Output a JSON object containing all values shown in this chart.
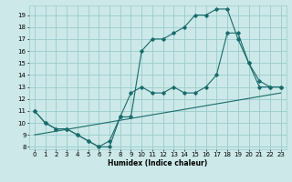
{
  "xlabel": "Humidex (Indice chaleur)",
  "bg_color": "#cce8e8",
  "grid_color": "#99cccc",
  "line_color": "#1a6b6b",
  "xlim": [
    -0.5,
    23.5
  ],
  "ylim": [
    7.8,
    19.8
  ],
  "yticks": [
    8,
    9,
    10,
    11,
    12,
    13,
    14,
    15,
    16,
    17,
    18,
    19
  ],
  "xticks": [
    0,
    1,
    2,
    3,
    4,
    5,
    6,
    7,
    8,
    9,
    10,
    11,
    12,
    13,
    14,
    15,
    16,
    17,
    18,
    19,
    20,
    21,
    22,
    23
  ],
  "line1_x": [
    0,
    1,
    2,
    3,
    4,
    5,
    6,
    7,
    8,
    9,
    10,
    11,
    12,
    13,
    14,
    15,
    16,
    17,
    18,
    19,
    20,
    21,
    22,
    23
  ],
  "line1_y": [
    11,
    10,
    9.5,
    9.5,
    9,
    8.5,
    8,
    8.5,
    10.5,
    12.5,
    13,
    12.5,
    12.5,
    13,
    12.5,
    12.5,
    13,
    14,
    17.5,
    17.5,
    15,
    13.5,
    13,
    13
  ],
  "line2_x": [
    0,
    1,
    2,
    3,
    4,
    5,
    6,
    7,
    8,
    9,
    10,
    11,
    12,
    13,
    14,
    15,
    16,
    17,
    18,
    19,
    20,
    21,
    22,
    23
  ],
  "line2_y": [
    11,
    10,
    9.5,
    9.5,
    9,
    8.5,
    8,
    8,
    10.5,
    10.5,
    16,
    17,
    17,
    17.5,
    18,
    19,
    19,
    19.5,
    19.5,
    17,
    15,
    13,
    13,
    13
  ],
  "line3_x": [
    0,
    23
  ],
  "line3_y": [
    9,
    12.5
  ]
}
